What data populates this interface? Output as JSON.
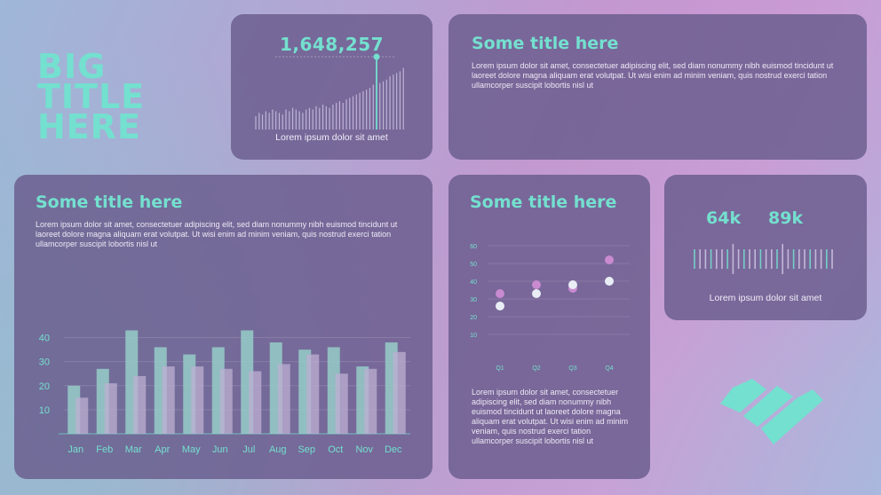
{
  "hero": {
    "title": "BIG TITLE HERE"
  },
  "stat_card": {
    "value": "1,648,257",
    "caption": "Lorem ipsum dolor sit amet"
  },
  "text_card": {
    "title": "Some title here",
    "body": "Lorem ipsum dolor sit amet, consectetuer adipiscing elit, sed diam nonummy nibh euismod tincidunt ut laoreet dolore magna aliquam erat volutpat. Ut wisi enim ad minim veniam, quis nostrud exerci tation ullamcorper suscipit lobortis nisl ut"
  },
  "bar_card": {
    "title": "Some title here",
    "body": "Lorem ipsum dolor sit amet, consectetuer adipiscing elit, sed diam nonummy nibh euismod tincidunt ut laoreet dolore magna aliquam erat volutpat. Ut wisi enim ad minim veniam, quis nostrud exerci tation ullamcorper suscipit lobortis nisl ut"
  },
  "scatter_card": {
    "title": "Some title here",
    "body": "Lorem ipsum dolor sit amet, consectetuer adipiscing elit, sed diam nonummy nibh euismod tincidunt ut laoreet dolore magna aliquam erat volutpat. Ut wisi enim ad minim veniam, quis nostrud exerci tation ullamcorper suscipit lobortis nisl ut"
  },
  "kpi_card": {
    "value_a": "64k",
    "value_b": "89k",
    "caption": "Lorem ipsum dolor sit amet"
  },
  "colors": {
    "teal": "#74e0cf",
    "pink": "#c98ad0",
    "white": "#e9eef5",
    "card": "#695c8c"
  },
  "chart_data": [
    {
      "type": "bar",
      "categories": [
        "Jan",
        "Feb",
        "Mar",
        "Apr",
        "May",
        "Jun",
        "Jul",
        "Aug",
        "Sep",
        "Oct",
        "Nov",
        "Dec"
      ],
      "series": [
        {
          "values": [
            20,
            27,
            43,
            36,
            33,
            36,
            43,
            38,
            35,
            36,
            28,
            38
          ]
        },
        {
          "values": [
            15,
            21,
            24,
            28,
            28,
            27,
            26,
            29,
            33,
            25,
            27,
            34
          ]
        }
      ],
      "yticks": [
        10,
        20,
        30,
        40
      ],
      "ylim": [
        0,
        45
      ],
      "grid": true
    },
    {
      "type": "scatter",
      "categories": [
        "Q1",
        "Q2",
        "Q3",
        "Q4"
      ],
      "series": [
        {
          "color": "#c98ad0",
          "values": [
            33,
            38,
            36,
            52
          ]
        },
        {
          "color": "#e9eef5",
          "values": [
            26,
            33,
            38,
            40
          ]
        }
      ],
      "yticks": [
        10,
        20,
        30,
        40,
        50,
        60
      ],
      "ylim": [
        0,
        60
      ],
      "grid": true
    },
    {
      "type": "bar",
      "note": "mini spike histogram",
      "values": [
        8,
        10,
        9,
        11,
        10,
        12,
        11,
        10,
        9,
        12,
        11,
        13,
        12,
        11,
        10,
        12,
        13,
        12,
        14,
        13,
        15,
        14,
        13,
        15,
        16,
        17,
        16,
        18,
        19,
        20,
        21,
        22,
        23,
        24,
        25,
        27,
        26,
        28,
        29,
        30,
        32,
        33,
        34,
        35,
        37
      ],
      "highlight_index": 36
    }
  ]
}
